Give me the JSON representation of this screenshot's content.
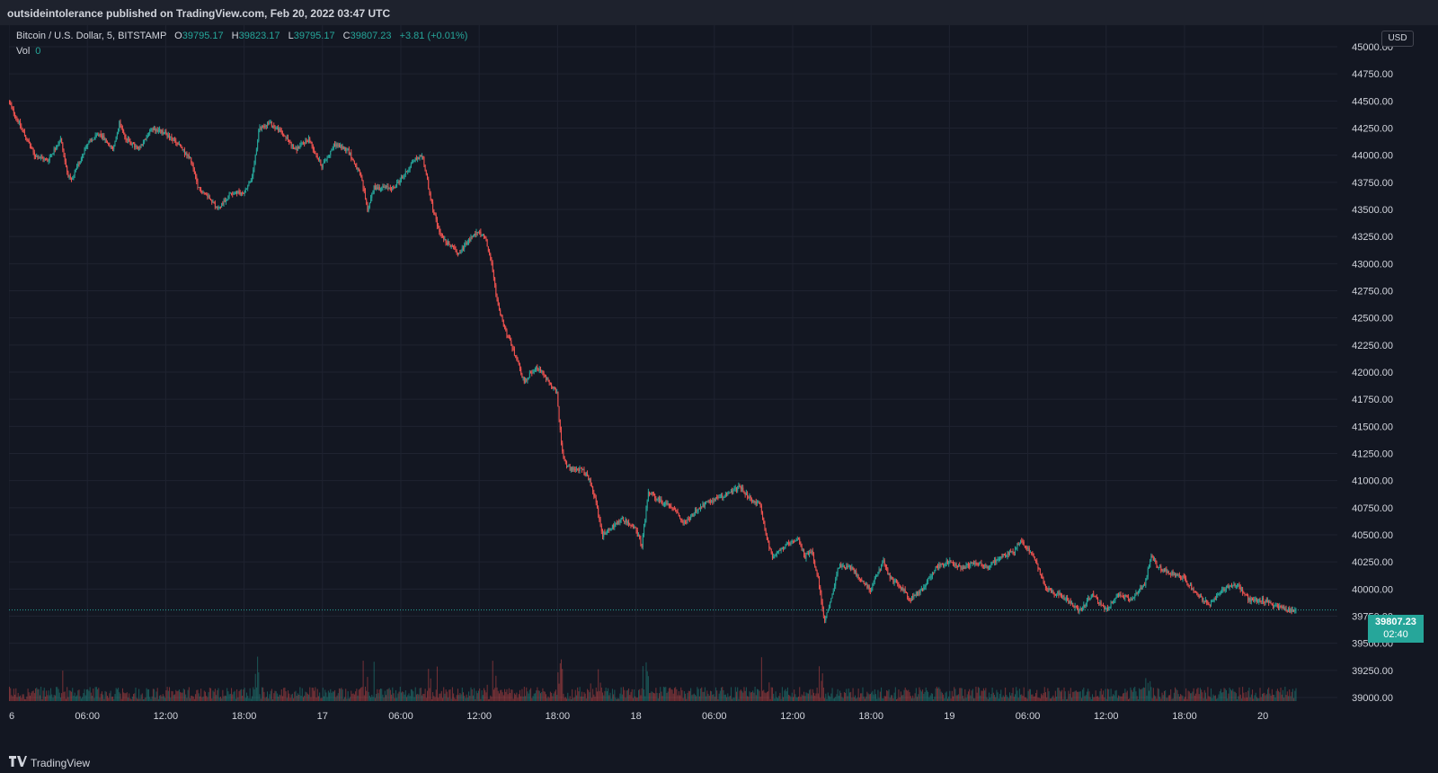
{
  "header": {
    "published": "outsideintolerance published on TradingView.com, Feb 20, 2022 03:47 UTC"
  },
  "legend": {
    "symbol": "Bitcoin / U.S. Dollar, 5, BITSTAMP",
    "o_label": "O",
    "o_value": "39795.17",
    "h_label": "H",
    "h_value": "39823.17",
    "l_label": "L",
    "l_value": "39795.17",
    "c_label": "C",
    "c_value": "39807.23",
    "change": "+3.81 (+0.01%)",
    "vol_label": "Vol",
    "vol_value": "0"
  },
  "currency": "USD",
  "last_price": {
    "value": "39807.23",
    "countdown": "02:40"
  },
  "footer": {
    "brand": "TradingView",
    "logo_icon": "tradingview-logo-icon"
  },
  "colors": {
    "up": "#26a69a",
    "down": "#ef5350",
    "background": "#131722",
    "grid": "#1f2330",
    "text": "#d1d4dc"
  },
  "chart_data": {
    "type": "line",
    "style": "candlestick",
    "interval_minutes": 5,
    "ylim": [
      39000,
      45000
    ],
    "yticks": [
      "39000.00",
      "39250.00",
      "39500.00",
      "39750.00",
      "40000.00",
      "40250.00",
      "40500.00",
      "40750.00",
      "41000.00",
      "41250.00",
      "41500.00",
      "41750.00",
      "42000.00",
      "42250.00",
      "42500.00",
      "42750.00",
      "43000.00",
      "43250.00",
      "43500.00",
      "43750.00",
      "44000.00",
      "44250.00",
      "44500.00",
      "44750.00",
      "45000.00"
    ],
    "xticks": [
      {
        "label": "6",
        "hours": 0
      },
      {
        "label": "06:00",
        "hours": 6
      },
      {
        "label": "12:00",
        "hours": 12
      },
      {
        "label": "18:00",
        "hours": 18
      },
      {
        "label": "17",
        "hours": 24
      },
      {
        "label": "06:00",
        "hours": 30
      },
      {
        "label": "12:00",
        "hours": 36
      },
      {
        "label": "18:00",
        "hours": 42
      },
      {
        "label": "18",
        "hours": 48
      },
      {
        "label": "06:00",
        "hours": 54
      },
      {
        "label": "12:00",
        "hours": 60
      },
      {
        "label": "18:00",
        "hours": 66
      },
      {
        "label": "19",
        "hours": 72
      },
      {
        "label": "06:00",
        "hours": 78
      },
      {
        "label": "12:00",
        "hours": 84
      },
      {
        "label": "18:00",
        "hours": 90
      },
      {
        "label": "20",
        "hours": 96
      }
    ],
    "x_max_hours": 101.7,
    "price_path": [
      [
        0,
        44500
      ],
      [
        1,
        44250
      ],
      [
        2,
        44000
      ],
      [
        3,
        43950
      ],
      [
        4,
        44150
      ],
      [
        4.5,
        43850
      ],
      [
        4.8,
        43750
      ],
      [
        6,
        44100
      ],
      [
        7,
        44200
      ],
      [
        8,
        44050
      ],
      [
        8.5,
        44300
      ],
      [
        9,
        44150
      ],
      [
        10,
        44050
      ],
      [
        11,
        44250
      ],
      [
        12,
        44200
      ],
      [
        13,
        44100
      ],
      [
        14,
        43950
      ],
      [
        14.5,
        43700
      ],
      [
        15.5,
        43600
      ],
      [
        16,
        43500
      ],
      [
        17,
        43650
      ],
      [
        18,
        43650
      ],
      [
        18.7,
        43800
      ],
      [
        19.2,
        44250
      ],
      [
        20,
        44300
      ],
      [
        21,
        44200
      ],
      [
        22,
        44050
      ],
      [
        23,
        44150
      ],
      [
        24,
        43900
      ],
      [
        25,
        44100
      ],
      [
        26,
        44050
      ],
      [
        27,
        43800
      ],
      [
        27.5,
        43500
      ],
      [
        28,
        43700
      ],
      [
        29.5,
        43700
      ],
      [
        30.5,
        43850
      ],
      [
        31,
        43950
      ],
      [
        31.7,
        44000
      ],
      [
        32.5,
        43500
      ],
      [
        33,
        43300
      ],
      [
        33.5,
        43200
      ],
      [
        34.5,
        43100
      ],
      [
        35.5,
        43250
      ],
      [
        36,
        43300
      ],
      [
        36.5,
        43250
      ],
      [
        37,
        43000
      ],
      [
        37.5,
        42600
      ],
      [
        38,
        42400
      ],
      [
        39,
        42100
      ],
      [
        39.5,
        41900
      ],
      [
        40,
        42000
      ],
      [
        40.5,
        42050
      ],
      [
        41.5,
        41900
      ],
      [
        42,
        41800
      ],
      [
        42.2,
        41500
      ],
      [
        42.5,
        41200
      ],
      [
        43,
        41100
      ],
      [
        44,
        41100
      ],
      [
        44.5,
        41000
      ],
      [
        45,
        40800
      ],
      [
        45.5,
        40500
      ],
      [
        46.5,
        40600
      ],
      [
        47,
        40650
      ],
      [
        48,
        40550
      ],
      [
        48.5,
        40400
      ],
      [
        49,
        40900
      ],
      [
        50,
        40800
      ],
      [
        51,
        40750
      ],
      [
        51.7,
        40600
      ],
      [
        52.5,
        40700
      ],
      [
        53.5,
        40800
      ],
      [
        54.5,
        40850
      ],
      [
        55.5,
        40900
      ],
      [
        56,
        40950
      ],
      [
        57,
        40800
      ],
      [
        57.5,
        40800
      ],
      [
        58,
        40500
      ],
      [
        58.5,
        40300
      ],
      [
        59.5,
        40400
      ],
      [
        60.5,
        40450
      ],
      [
        61,
        40300
      ],
      [
        61.5,
        40350
      ],
      [
        62,
        40100
      ],
      [
        62.5,
        39700
      ],
      [
        63,
        39900
      ],
      [
        63.5,
        40200
      ],
      [
        64.5,
        40200
      ],
      [
        65.5,
        40050
      ],
      [
        66,
        40000
      ],
      [
        67,
        40250
      ],
      [
        67.5,
        40100
      ],
      [
        68.5,
        40000
      ],
      [
        69,
        39900
      ],
      [
        70,
        40000
      ],
      [
        71,
        40200
      ],
      [
        72,
        40250
      ],
      [
        73,
        40200
      ],
      [
        74,
        40250
      ],
      [
        75,
        40200
      ],
      [
        76,
        40300
      ],
      [
        77,
        40350
      ],
      [
        77.5,
        40450
      ],
      [
        78.5,
        40300
      ],
      [
        79,
        40150
      ],
      [
        79.5,
        40000
      ],
      [
        80.5,
        39950
      ],
      [
        81.5,
        39850
      ],
      [
        82,
        39800
      ],
      [
        83,
        39950
      ],
      [
        84,
        39800
      ],
      [
        85,
        39950
      ],
      [
        86,
        39900
      ],
      [
        87,
        40050
      ],
      [
        87.5,
        40300
      ],
      [
        88,
        40200
      ],
      [
        89,
        40150
      ],
      [
        90,
        40100
      ],
      [
        91,
        39950
      ],
      [
        92,
        39850
      ],
      [
        93,
        40000
      ],
      [
        94,
        40050
      ],
      [
        95,
        39900
      ],
      [
        96,
        39900
      ],
      [
        97,
        39850
      ],
      [
        98,
        39800
      ],
      [
        98.5,
        39807
      ]
    ]
  }
}
